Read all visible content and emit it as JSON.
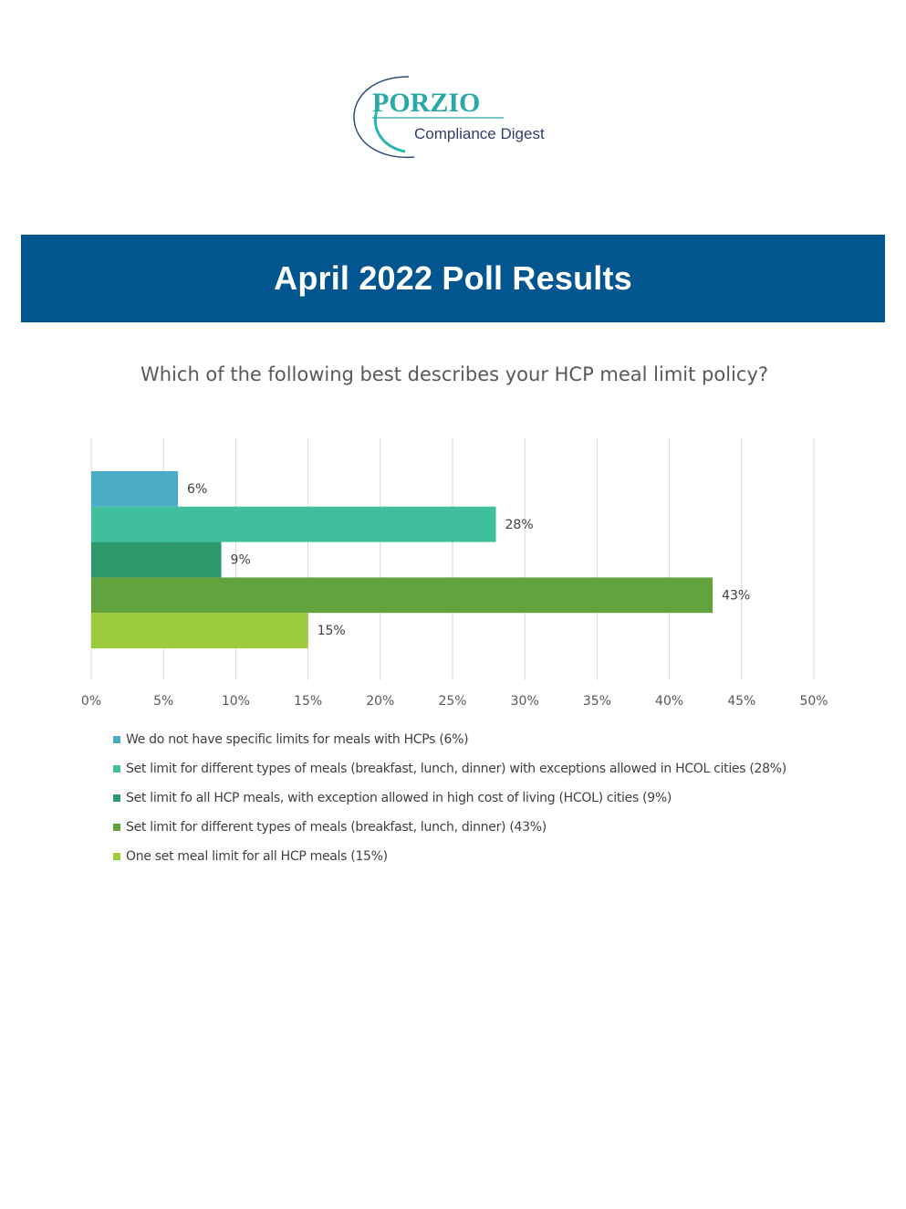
{
  "logo": {
    "brand": "PORZIO",
    "tagline": "Compliance Digest"
  },
  "banner": {
    "title": "April 2022 Poll Results"
  },
  "chart_data": {
    "type": "bar",
    "orientation": "horizontal",
    "title": "Which of the following best describes your HCP meal limit policy?",
    "xlabel": "",
    "ylabel": "",
    "xlim": [
      0,
      50
    ],
    "x_ticks": [
      "0%",
      "5%",
      "10%",
      "15%",
      "20%",
      "25%",
      "30%",
      "35%",
      "40%",
      "45%",
      "50%"
    ],
    "grid": "vertical",
    "legend_position": "bottom-left",
    "series": [
      {
        "name": "We do not have specific limits for meals with HCPs (6%)",
        "value": 6,
        "label": "6%",
        "color": "#4bacc6"
      },
      {
        "name": "Set limit for different types of meals (breakfast, lunch, dinner) with exceptions allowed in HCOL cities (28%)",
        "value": 28,
        "label": "28%",
        "color": "#3fbf9b"
      },
      {
        "name": "Set limit fo all HCP meals, with exception allowed in high cost of living (HCOL) cities (9%)",
        "value": 9,
        "label": "9%",
        "color": "#2e9a6c"
      },
      {
        "name": "Set limit for different types of meals (breakfast, lunch, dinner) (43%)",
        "value": 43,
        "label": "43%",
        "color": "#62a33d"
      },
      {
        "name": "One set meal limit for all HCP meals (15%)",
        "value": 15,
        "label": "15%",
        "color": "#9ccb3b"
      }
    ]
  }
}
